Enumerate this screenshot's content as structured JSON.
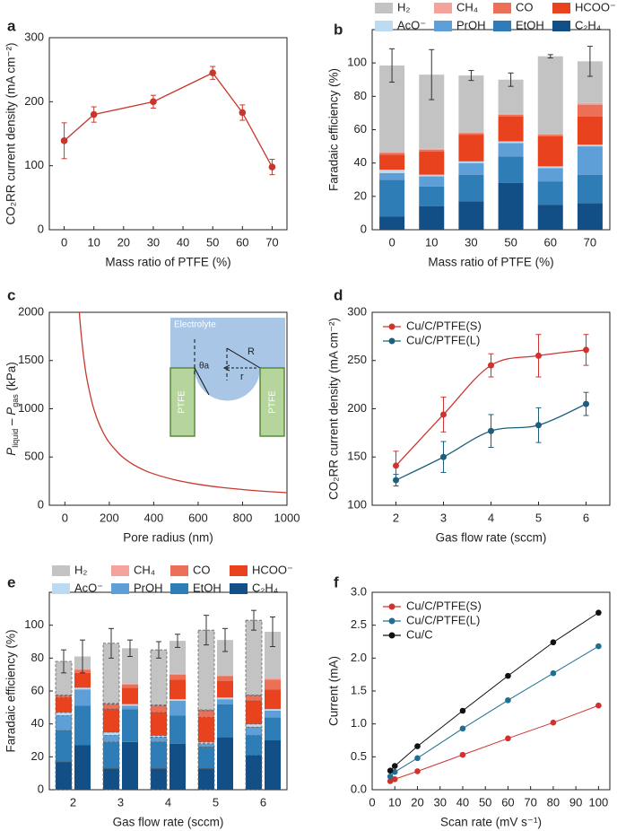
{
  "chart_data": [
    {
      "panel": "a",
      "type": "line",
      "x_label": "Mass ratio of PTFE (%)",
      "y_label": "CO₂RR current density (mA cm⁻²)",
      "x": [
        0,
        10,
        30,
        50,
        60,
        70
      ],
      "values": [
        139,
        180,
        200,
        245,
        183,
        98
      ],
      "errors": [
        28,
        12,
        10,
        10,
        12,
        12
      ],
      "color": "#c8372d",
      "xlim": [
        -5,
        75
      ],
      "xticks": [
        0,
        10,
        20,
        30,
        40,
        50,
        60,
        70
      ],
      "ylim": [
        0,
        300
      ],
      "yticks": [
        0,
        100,
        200,
        300
      ]
    },
    {
      "panel": "b",
      "type": "stacked_bar",
      "x_label": "Mass ratio of PTFE (%)",
      "y_label": "Faradaic efficiency (%)",
      "categories": [
        "0",
        "10",
        "30",
        "50",
        "60",
        "70"
      ],
      "series": [
        {
          "name": "C₂H₄",
          "color": "#124f86",
          "values": [
            8,
            14,
            17,
            28,
            15,
            16
          ]
        },
        {
          "name": "EtOH",
          "color": "#2f7db6",
          "values": [
            22,
            12,
            16,
            16,
            14,
            17
          ]
        },
        {
          "name": "PrOH",
          "color": "#5d9fd6",
          "values": [
            4,
            6,
            7,
            8,
            8,
            17
          ]
        },
        {
          "name": "AcO⁻",
          "color": "#bcdaf0",
          "values": [
            2,
            1,
            1,
            1,
            1,
            1
          ]
        },
        {
          "name": "HCOO⁻",
          "color": "#e8421e",
          "values": [
            9,
            14,
            16,
            15,
            18,
            17
          ]
        },
        {
          "name": "CO",
          "color": "#ec7057",
          "values": [
            1,
            1,
            1,
            1,
            1,
            7
          ]
        },
        {
          "name": "CH₄",
          "color": "#f3a29c",
          "values": [
            0.5,
            0.5,
            0.5,
            0.5,
            0.5,
            1
          ]
        },
        {
          "name": "H₂",
          "color": "#c3c3c3",
          "values": [
            52,
            44.5,
            34,
            20.5,
            46.5,
            25
          ],
          "errors": [
            10,
            15,
            3,
            4,
            1,
            9
          ]
        }
      ],
      "ylim": [
        0,
        120
      ],
      "yticks": [
        0,
        20,
        40,
        60,
        80,
        100
      ]
    },
    {
      "panel": "c",
      "type": "curve",
      "x_label": "Pore radius (nm)",
      "y_label_parts": [
        "P",
        "liquid",
        " – P",
        "gas",
        " (kPa)"
      ],
      "x": [
        65,
        70,
        80,
        90,
        100,
        125,
        150,
        175,
        200,
        250,
        300,
        350,
        400,
        500,
        600,
        700,
        800,
        900,
        1000
      ],
      "values": [
        2000,
        1857,
        1625,
        1444,
        1300,
        1040,
        867,
        743,
        650,
        520,
        433,
        371,
        325,
        260,
        217,
        186,
        163,
        144,
        130
      ],
      "color": "#c8372d",
      "xlim": [
        -70,
        1000
      ],
      "xticks": [
        0,
        200,
        400,
        600,
        800,
        1000
      ],
      "ylim": [
        0,
        2000
      ],
      "yticks": [
        0,
        500,
        1000,
        1500,
        2000
      ],
      "inset": {
        "electrolyte": "Electrolyte",
        "left": "PTFE",
        "right": "PTFE",
        "angle": "θa",
        "big_radius": "R",
        "small_radius": "r"
      }
    },
    {
      "panel": "d",
      "type": "smooth_line",
      "x_label": "Gas flow rate (sccm)",
      "y_label": "CO₂RR current density (mA cm⁻²)",
      "legend": "upper left",
      "x": [
        2,
        3,
        4,
        5,
        6
      ],
      "series": [
        {
          "name": "Cu/C/PTFE(S)",
          "color": "#d0332f",
          "values": [
            141,
            194,
            245,
            255,
            261
          ],
          "errors": [
            15,
            18,
            12,
            22,
            16
          ]
        },
        {
          "name": "Cu/C/PTFE(L)",
          "color": "#1f5f7e",
          "values": [
            126,
            150,
            177,
            183,
            205
          ],
          "errors": [
            6,
            16,
            17,
            18,
            12
          ]
        }
      ],
      "xlim": [
        1.5,
        6.5
      ],
      "xticks": [
        2,
        3,
        4,
        5,
        6
      ],
      "ylim": [
        100,
        300
      ],
      "yticks": [
        100,
        150,
        200,
        250,
        300
      ]
    },
    {
      "panel": "e",
      "type": "paired_stacked_bar",
      "x_label": "Gas flow rate (sccm)",
      "y_label": "Faradaic efficiency (%)",
      "categories": [
        "2",
        "3",
        "4",
        "5",
        "6"
      ],
      "bar_outline": [
        "dashed",
        "solid"
      ],
      "series": [
        {
          "name": "C₂H₄",
          "color": "#124f86",
          "values": [
            [
              17,
              27
            ],
            [
              13,
              29
            ],
            [
              13,
              28
            ],
            [
              13,
              32
            ],
            [
              21,
              30
            ]
          ]
        },
        {
          "name": "EtOH",
          "color": "#2f7db6",
          "values": [
            [
              19,
              24
            ],
            [
              16,
              20
            ],
            [
              16,
              17
            ],
            [
              13,
              20
            ],
            [
              12,
              14
            ]
          ]
        },
        {
          "name": "PrOH",
          "color": "#5d9fd6",
          "values": [
            [
              9,
              10
            ],
            [
              4,
              2
            ],
            [
              3,
              9
            ],
            [
              2,
              3
            ],
            [
              5,
              4
            ]
          ]
        },
        {
          "name": "AcO⁻",
          "color": "#bcdaf0",
          "values": [
            [
              2,
              1
            ],
            [
              2,
              1
            ],
            [
              1,
              1
            ],
            [
              1,
              1
            ],
            [
              2,
              1
            ]
          ]
        },
        {
          "name": "HCOO⁻",
          "color": "#e8421e",
          "values": [
            [
              9,
              9
            ],
            [
              14,
              10
            ],
            [
              14,
              12
            ],
            [
              15,
              10
            ],
            [
              14,
              12
            ]
          ]
        },
        {
          "name": "CO",
          "color": "#ec7057",
          "values": [
            [
              1,
              2
            ],
            [
              3,
              2
            ],
            [
              4,
              3
            ],
            [
              4,
              3
            ],
            [
              3,
              6
            ]
          ]
        },
        {
          "name": "CH₄",
          "color": "#f3a29c",
          "values": [
            [
              0.5,
              0.5
            ],
            [
              0.5,
              0.5
            ],
            [
              0.5,
              0.5
            ],
            [
              0.5,
              0.5
            ],
            [
              0.5,
              1
            ]
          ]
        },
        {
          "name": "H₂",
          "color": "#c3c3c3",
          "values": [
            [
              20.5,
              7.5
            ],
            [
              36.5,
              21.5
            ],
            [
              33.5,
              20
            ],
            [
              48.5,
              21.5
            ],
            [
              45.5,
              28
            ]
          ],
          "errors": [
            [
              7,
              10
            ],
            [
              9,
              5
            ],
            [
              5,
              4
            ],
            [
              9,
              7
            ],
            [
              6,
              9
            ]
          ]
        }
      ],
      "ylim": [
        0,
        120
      ],
      "yticks": [
        0,
        20,
        40,
        60,
        80,
        100
      ]
    },
    {
      "panel": "f",
      "type": "scatter_line",
      "x_label": "Scan rate (mV s⁻¹)",
      "y_label": "Current (mA)",
      "legend": "upper left",
      "x": [
        8,
        10,
        20,
        40,
        60,
        80,
        100
      ],
      "series": [
        {
          "name": "Cu/C/PTFE(S)",
          "color": "#d0332f",
          "values": [
            0.13,
            0.16,
            0.28,
            0.53,
            0.78,
            1.02,
            1.28
          ]
        },
        {
          "name": "Cu/C/PTFE(L)",
          "color": "#1f6f93",
          "values": [
            0.2,
            0.27,
            0.48,
            0.93,
            1.36,
            1.77,
            2.18
          ]
        },
        {
          "name": "Cu/C",
          "color": "#111111",
          "values": [
            0.29,
            0.36,
            0.66,
            1.2,
            1.73,
            2.24,
            2.69
          ]
        }
      ],
      "xlim": [
        0,
        105
      ],
      "xticks": [
        0,
        10,
        20,
        30,
        40,
        50,
        60,
        70,
        80,
        90,
        100
      ],
      "ylim": [
        0,
        3
      ],
      "yticks": [
        {
          "value": 0,
          "label": "0.0"
        },
        0.5,
        {
          "value": 1,
          "label": "1.0"
        },
        1.5,
        {
          "value": 2,
          "label": "2.0"
        },
        2.5,
        {
          "value": 3,
          "label": "3.0"
        }
      ]
    }
  ]
}
